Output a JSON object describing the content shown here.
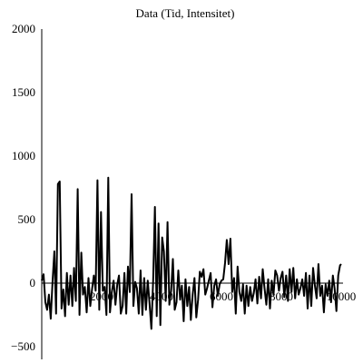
{
  "chart_data": {
    "type": "line",
    "title": "Data (Tid, Intensitet)",
    "xlabel": "",
    "ylabel": "",
    "xlim": [
      0,
      10000
    ],
    "ylim": [
      -500,
      2000
    ],
    "grid": false,
    "line_color": "#000000",
    "x_ticks": [
      {
        "value": 2000,
        "label": "2000"
      },
      {
        "value": 4000,
        "label": "4000"
      },
      {
        "value": 6000,
        "label": "6000"
      },
      {
        "value": 8000,
        "label": "8000"
      },
      {
        "value": 10000,
        "label": "10000"
      }
    ],
    "y_ticks": [
      {
        "value": -500,
        "label": "−500"
      },
      {
        "value": 0,
        "label": "0"
      },
      {
        "value": 500,
        "label": "500"
      },
      {
        "value": 1000,
        "label": "1000"
      },
      {
        "value": 1500,
        "label": "1500"
      },
      {
        "value": 2000,
        "label": "2000"
      }
    ],
    "series": [
      {
        "values": [
          [
            0,
            20
          ],
          [
            60,
            70
          ],
          [
            120,
            -150
          ],
          [
            180,
            -210
          ],
          [
            240,
            -90
          ],
          [
            300,
            -280
          ],
          [
            360,
            10
          ],
          [
            420,
            250
          ],
          [
            480,
            -240
          ],
          [
            540,
            780
          ],
          [
            600,
            800
          ],
          [
            660,
            -200
          ],
          [
            720,
            -50
          ],
          [
            780,
            -260
          ],
          [
            840,
            80
          ],
          [
            900,
            -170
          ],
          [
            960,
            60
          ],
          [
            1020,
            -180
          ],
          [
            1080,
            120
          ],
          [
            1140,
            -140
          ],
          [
            1200,
            740
          ],
          [
            1260,
            -250
          ],
          [
            1320,
            240
          ],
          [
            1380,
            -90
          ],
          [
            1440,
            -30
          ],
          [
            1500,
            -230
          ],
          [
            1560,
            40
          ],
          [
            1620,
            -180
          ],
          [
            1680,
            -50
          ],
          [
            1740,
            60
          ],
          [
            1800,
            -60
          ],
          [
            1860,
            810
          ],
          [
            1920,
            -210
          ],
          [
            1980,
            560
          ],
          [
            2040,
            -60
          ],
          [
            2100,
            -30
          ],
          [
            2160,
            -250
          ],
          [
            2220,
            830
          ],
          [
            2280,
            -230
          ],
          [
            2340,
            -70
          ],
          [
            2400,
            20
          ],
          [
            2460,
            -170
          ],
          [
            2520,
            -10
          ],
          [
            2580,
            60
          ],
          [
            2640,
            -240
          ],
          [
            2700,
            -180
          ],
          [
            2760,
            80
          ],
          [
            2820,
            -240
          ],
          [
            2880,
            130
          ],
          [
            2940,
            -70
          ],
          [
            3000,
            700
          ],
          [
            3060,
            -180
          ],
          [
            3120,
            10
          ],
          [
            3180,
            -40
          ],
          [
            3240,
            -240
          ],
          [
            3300,
            100
          ],
          [
            3360,
            -250
          ],
          [
            3420,
            40
          ],
          [
            3480,
            -210
          ],
          [
            3540,
            20
          ],
          [
            3600,
            -160
          ],
          [
            3660,
            -360
          ],
          [
            3720,
            30
          ],
          [
            3780,
            600
          ],
          [
            3840,
            -260
          ],
          [
            3900,
            470
          ],
          [
            3960,
            -330
          ],
          [
            4020,
            360
          ],
          [
            4080,
            250
          ],
          [
            4140,
            -140
          ],
          [
            4200,
            480
          ],
          [
            4260,
            -170
          ],
          [
            4320,
            -60
          ],
          [
            4380,
            190
          ],
          [
            4440,
            -210
          ],
          [
            4500,
            -150
          ],
          [
            4560,
            100
          ],
          [
            4620,
            -130
          ],
          [
            4680,
            -20
          ],
          [
            4740,
            -300
          ],
          [
            4800,
            30
          ],
          [
            4860,
            -180
          ],
          [
            4920,
            -30
          ],
          [
            4980,
            -290
          ],
          [
            5040,
            -90
          ],
          [
            5100,
            40
          ],
          [
            5160,
            -270
          ],
          [
            5220,
            -130
          ],
          [
            5280,
            90
          ],
          [
            5340,
            50
          ],
          [
            5400,
            110
          ],
          [
            5460,
            -90
          ],
          [
            5520,
            -40
          ],
          [
            5580,
            20
          ],
          [
            5640,
            80
          ],
          [
            5700,
            -190
          ],
          [
            5760,
            -20
          ],
          [
            5820,
            30
          ],
          [
            5880,
            -100
          ],
          [
            5940,
            -10
          ],
          [
            6000,
            20
          ],
          [
            6060,
            30
          ],
          [
            6120,
            160
          ],
          [
            6180,
            340
          ],
          [
            6240,
            150
          ],
          [
            6300,
            350
          ],
          [
            6360,
            -70
          ],
          [
            6420,
            40
          ],
          [
            6480,
            -240
          ],
          [
            6540,
            130
          ],
          [
            6600,
            -70
          ],
          [
            6660,
            -140
          ],
          [
            6720,
            -10
          ],
          [
            6780,
            -240
          ],
          [
            6840,
            -20
          ],
          [
            6900,
            -180
          ],
          [
            6960,
            -30
          ],
          [
            7020,
            -140
          ],
          [
            7080,
            -80
          ],
          [
            7140,
            30
          ],
          [
            7200,
            -160
          ],
          [
            7260,
            50
          ],
          [
            7320,
            -120
          ],
          [
            7380,
            110
          ],
          [
            7440,
            -40
          ],
          [
            7500,
            -170
          ],
          [
            7560,
            30
          ],
          [
            7620,
            -200
          ],
          [
            7680,
            20
          ],
          [
            7740,
            -90
          ],
          [
            7800,
            100
          ],
          [
            7860,
            60
          ],
          [
            7920,
            -60
          ],
          [
            7980,
            40
          ],
          [
            8040,
            90
          ],
          [
            8100,
            -110
          ],
          [
            8160,
            60
          ],
          [
            8220,
            -140
          ],
          [
            8280,
            110
          ],
          [
            8340,
            -70
          ],
          [
            8400,
            120
          ],
          [
            8460,
            -120
          ],
          [
            8520,
            30
          ],
          [
            8580,
            -90
          ],
          [
            8640,
            -40
          ],
          [
            8700,
            30
          ],
          [
            8760,
            -100
          ],
          [
            8820,
            80
          ],
          [
            8880,
            -200
          ],
          [
            8940,
            60
          ],
          [
            9000,
            -180
          ],
          [
            9060,
            120
          ],
          [
            9120,
            -20
          ],
          [
            9180,
            -120
          ],
          [
            9240,
            150
          ],
          [
            9300,
            -100
          ],
          [
            9360,
            -20
          ],
          [
            9420,
            -230
          ],
          [
            9480,
            -10
          ],
          [
            9540,
            -100
          ],
          [
            9600,
            20
          ],
          [
            9660,
            -150
          ],
          [
            9720,
            60
          ],
          [
            9780,
            -40
          ],
          [
            9840,
            -220
          ],
          [
            9900,
            60
          ],
          [
            9960,
            140
          ],
          [
            10000,
            150
          ]
        ]
      }
    ]
  }
}
